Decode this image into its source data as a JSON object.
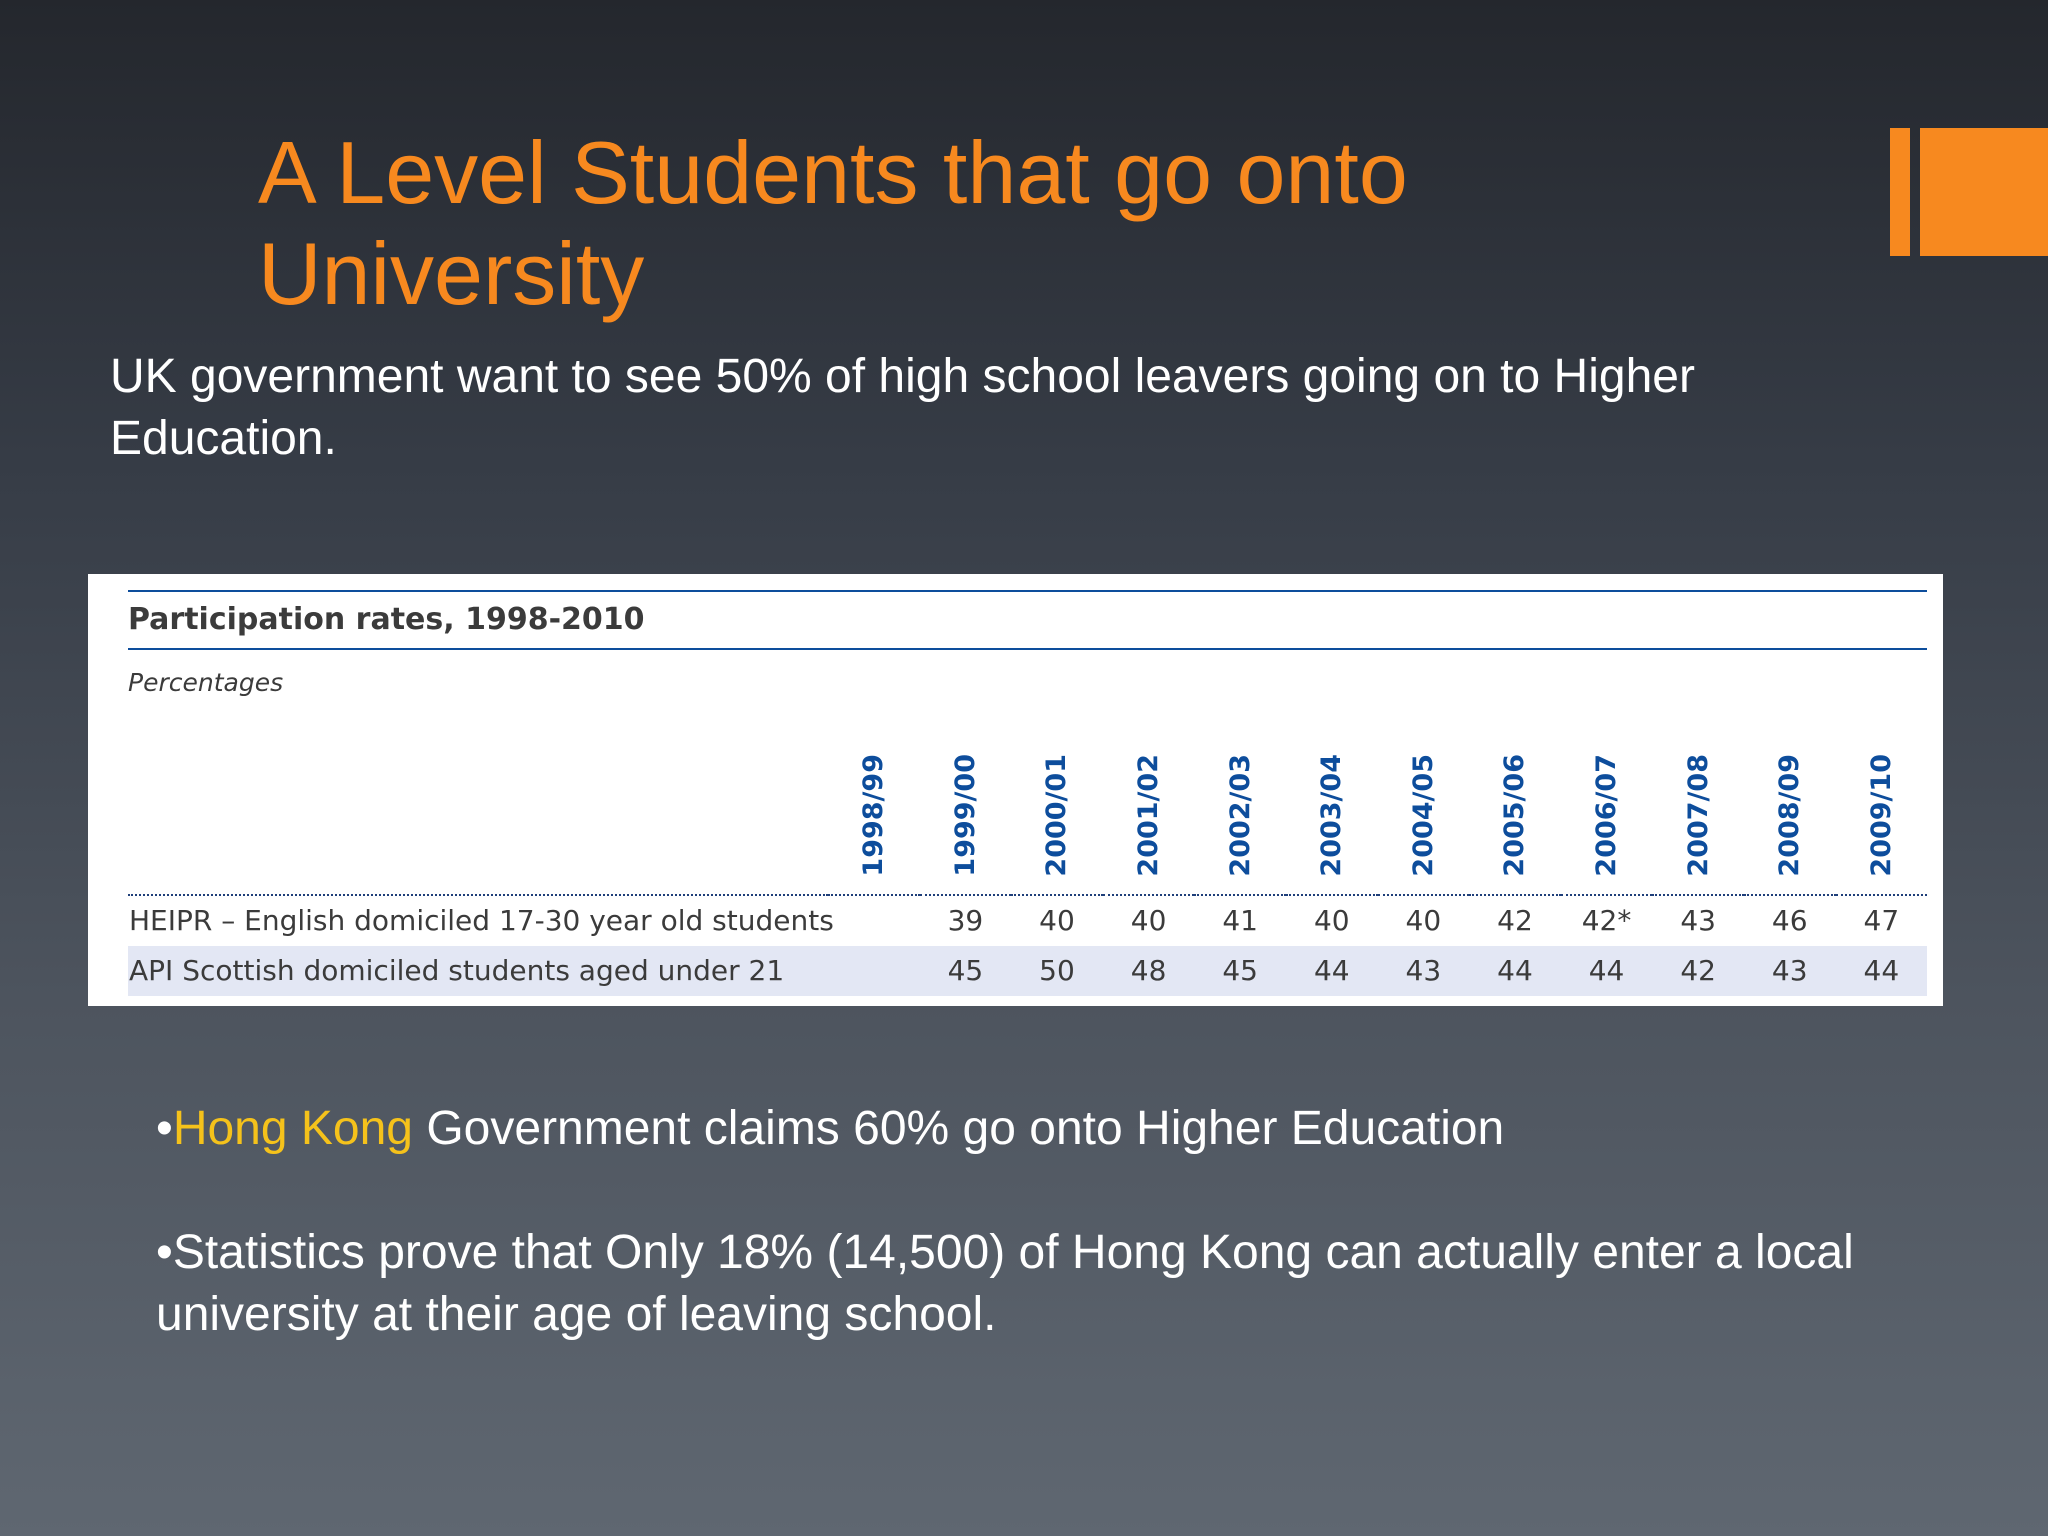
{
  "slide": {
    "title": "A Level Students that go onto University",
    "intro": "UK government want to see 50% of high school leavers going on to Higher Education."
  },
  "table": {
    "title": "Participation rates, 1998-2010",
    "subtitle": "Percentages",
    "years": [
      "1998/99",
      "1999/00",
      "2000/01",
      "2001/02",
      "2002/03",
      "2003/04",
      "2004/05",
      "2005/06",
      "2006/07",
      "2007/08",
      "2008/09",
      "2009/10"
    ],
    "rows": [
      {
        "label": "HEIPR – English domiciled 17-30 year old students",
        "values": [
          "",
          "39",
          "40",
          "40",
          "41",
          "40",
          "40",
          "42",
          "42*",
          "43",
          "46",
          "47"
        ]
      },
      {
        "label": "API Scottish domiciled students aged under 21",
        "values": [
          "",
          "45",
          "50",
          "48",
          "45",
          "44",
          "43",
          "44",
          "44",
          "42",
          "43",
          "44"
        ]
      }
    ]
  },
  "bullets": [
    {
      "marker": "•",
      "highlight": "Hong Kong",
      "text": " Government claims 60% go onto Higher Education"
    },
    {
      "marker": "•",
      "highlight": "",
      "text": "Statistics prove that Only 18% (14,500) of Hong Kong can actually enter a local university at their age of leaving school."
    }
  ],
  "colors": {
    "accent": "#f7891f",
    "highlight": "#f5c21b",
    "table_header_blue": "#0d4d9c"
  }
}
